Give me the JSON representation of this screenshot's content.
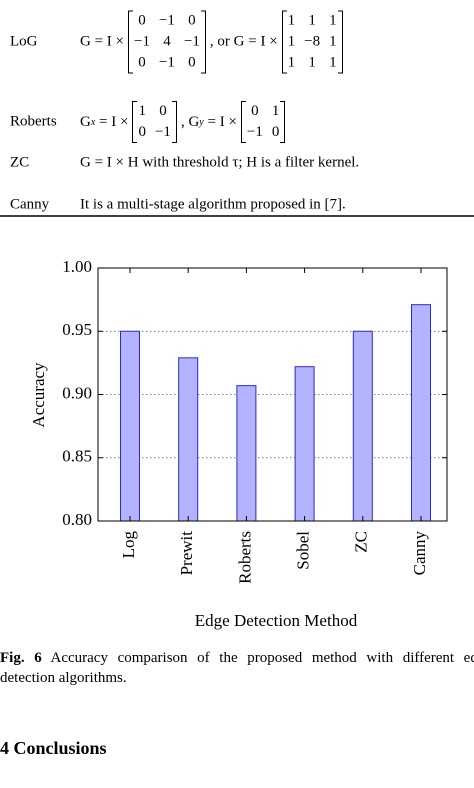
{
  "table": {
    "rows": [
      {
        "name": "LoG",
        "formula": [
          {
            "text": "G = I ×"
          },
          {
            "matrix": [
              [
                "0",
                "−1",
                "0"
              ],
              [
                "−1",
                "4",
                "−1"
              ],
              [
                "0",
                "−1",
                "0"
              ]
            ]
          },
          {
            "text": ", or G = I ×"
          },
          {
            "matrix": [
              [
                "1",
                "1",
                "1"
              ],
              [
                "1",
                "−8",
                "1"
              ],
              [
                "1",
                "1",
                "1"
              ]
            ]
          }
        ]
      },
      {
        "name": "Roberts",
        "formula": [
          {
            "text": "G"
          },
          {
            "sub": "x"
          },
          {
            "text": " = I ×"
          },
          {
            "matrix": [
              [
                "1",
                "0"
              ],
              [
                "0",
                "−1"
              ]
            ]
          },
          {
            "text": ", G"
          },
          {
            "sub": "y"
          },
          {
            "text": " = I ×"
          },
          {
            "matrix": [
              [
                "0",
                "1"
              ],
              [
                "−1",
                "0"
              ]
            ]
          }
        ]
      },
      {
        "name": "ZC",
        "formula": [
          {
            "text": "G = I × H with threshold τ; H is a filter kernel."
          }
        ]
      },
      {
        "name": "Canny",
        "formula": [
          {
            "text": "It is a multi-stage algorithm proposed in [7]."
          }
        ]
      }
    ]
  },
  "chart_data": {
    "type": "bar",
    "x_label": "Edge Detection Method",
    "y_label": "Accuracy",
    "categories": [
      "Log",
      "Prewit",
      "Roberts",
      "Sobel",
      "ZC",
      "Canny"
    ],
    "values": [
      0.95,
      0.929,
      0.907,
      0.922,
      0.95,
      0.971
    ],
    "color": "#b3b3ff",
    "edge_color": "#2a2ad0",
    "ylim": [
      0.8,
      1.0
    ],
    "yticks": [
      {
        "value": 0.8,
        "label": "0.80"
      },
      {
        "value": 0.85,
        "label": "0.85"
      },
      {
        "value": 0.9,
        "label": "0.90"
      },
      {
        "value": 0.95,
        "label": "0.95"
      },
      {
        "value": 1.0,
        "label": "1.00"
      }
    ],
    "grid": true
  },
  "caption": {
    "label": "Fig. 6",
    "text": "Accuracy comparison of the proposed method with different edge detection algorithms."
  },
  "section": {
    "heading": "4 Conclusions"
  }
}
